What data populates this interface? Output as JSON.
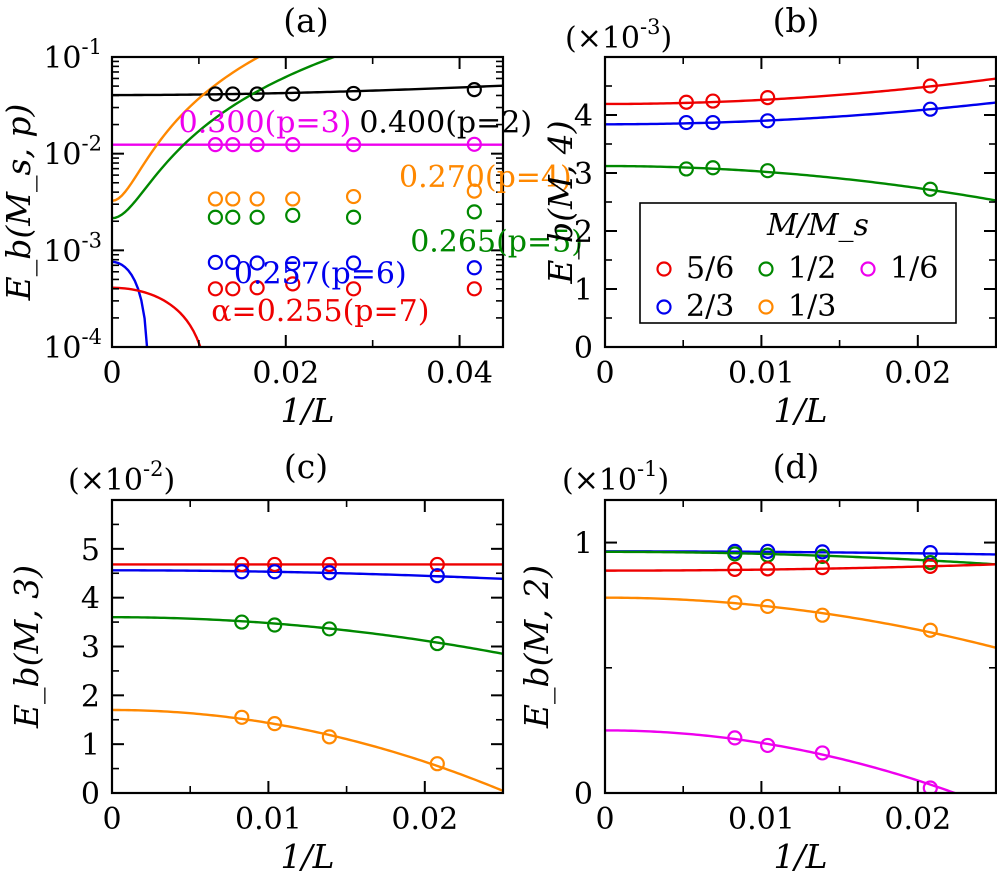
{
  "chart_data": [
    {
      "type": "line",
      "panel": "(a)",
      "yscale": "log",
      "xlabel": "1/L",
      "ylabel": "E_b(M_s, p)",
      "xlim": [
        0,
        0.045
      ],
      "ylim": [
        0.0001,
        0.1
      ],
      "xticks": [
        {
          "v": 0,
          "label": "0"
        },
        {
          "v": 0.02,
          "label": "0.02"
        },
        {
          "v": 0.04,
          "label": "0.04"
        }
      ],
      "yticks": [
        {
          "v": 0.1,
          "base": "10",
          "exp": "-1"
        },
        {
          "v": 0.01,
          "base": "10",
          "exp": "-2"
        },
        {
          "v": 0.001,
          "base": "10",
          "exp": "-3"
        },
        {
          "v": 0.0001,
          "base": "10",
          "exp": "-4"
        }
      ],
      "series": [
        {
          "name": "0.400(p=2)",
          "color": "#000000",
          "x": [
            0.0119,
            0.0139,
            0.0167,
            0.0208,
            0.0278,
            0.0417
          ],
          "y": [
            0.0415,
            0.0415,
            0.0415,
            0.0415,
            0.042,
            0.046
          ],
          "fit": [
            0.0404,
            0.0,
            5.0
          ],
          "label": {
            "text": "0.400(p=2)",
            "x": 0.0333,
            "y": 0.0205
          }
        },
        {
          "name": "0.300(p=3)",
          "color": "#ee00ee",
          "x": [
            0.0119,
            0.0139,
            0.0167,
            0.0208,
            0.0278,
            0.0417
          ],
          "y": [
            0.0124,
            0.0124,
            0.0124,
            0.0124,
            0.0124,
            0.0125
          ],
          "fit": [
            0.0124,
            0.0,
            0.0
          ],
          "label": {
            "text": "0.300(p=3)",
            "x": 0.0056,
            "y": 0.0205
          }
        },
        {
          "name": "0.270(p=4)",
          "color": "#ff8800",
          "x": [
            0.0119,
            0.0139,
            0.0167,
            0.0208,
            0.0278,
            0.0417
          ],
          "y": [
            0.0034,
            0.0034,
            0.0034,
            0.0034,
            0.0036,
            0.0041
          ],
          "fit": [
            0.00325,
            0.0,
            340.0
          ],
          "label": {
            "text": "0.270(p=4)",
            "x": 0.0305,
            "y": 0.0056
          }
        },
        {
          "name": "0.265(p=5)",
          "color": "#008800",
          "x": [
            0.0119,
            0.0139,
            0.0167,
            0.0208,
            0.0278,
            0.0417
          ],
          "y": [
            0.0022,
            0.0022,
            0.0022,
            0.0023,
            0.0022,
            0.0025
          ],
          "fit": [
            0.00215,
            0.0,
            150.0
          ],
          "label": {
            "text": "0.265(p=5)",
            "x": 0.0357,
            "y": 0.0012
          }
        },
        {
          "name": "0.257(p=6)",
          "color": "#0000ee",
          "x": [
            0.0119,
            0.0139,
            0.0167,
            0.0208,
            0.0278,
            0.0417
          ],
          "y": [
            0.00075,
            0.00075,
            0.00074,
            0.00073,
            0.00074,
            0.00066
          ],
          "fit": [
            0.00076,
            0.0,
            -40.0
          ],
          "label": {
            "text": "0.257(p=6)",
            "x": 0.0115,
            "y": 0.00056
          }
        },
        {
          "name": "α=0.255(p=7)",
          "color": "#ee0000",
          "x": [
            0.0119,
            0.0139,
            0.0167,
            0.0208,
            0.0278,
            0.0417
          ],
          "y": [
            0.0004,
            0.0004,
            0.00041,
            0.00045,
            0.0004,
            0.0004
          ],
          "fit": [
            0.00041,
            0.0,
            -3.0
          ],
          "label": {
            "text": "α=0.255(p=7)",
            "x": 0.0135,
            "y": 0.00023
          }
        }
      ]
    },
    {
      "type": "line",
      "panel": "(b)",
      "yscale": "linear",
      "multiplier": "(×10",
      "multiplier_exp": "-3",
      "xlabel": "1/L",
      "ylabel": "E_b(M, 4)",
      "xlim": [
        0,
        0.025
      ],
      "ylim": [
        0,
        5
      ],
      "xticks": [
        {
          "v": 0,
          "label": "0"
        },
        {
          "v": 0.01,
          "label": "0.01"
        },
        {
          "v": 0.02,
          "label": "0.02"
        }
      ],
      "yticks": [
        {
          "v": 0,
          "label": "0"
        },
        {
          "v": 1,
          "label": "1"
        },
        {
          "v": 2,
          "label": "2"
        },
        {
          "v": 3,
          "label": "3"
        },
        {
          "v": 4,
          "label": "4"
        }
      ],
      "legend": {
        "title": "M/M_s",
        "entries": [
          {
            "label": "5/6",
            "color": "#ee0000"
          },
          {
            "label": "1/2",
            "color": "#008800"
          },
          {
            "label": "1/6",
            "color": "#ee00ee"
          },
          {
            "label": "2/3",
            "color": "#0000ee"
          },
          {
            "label": "1/3",
            "color": "#ff8800"
          }
        ]
      },
      "series": [
        {
          "name": "5/6",
          "color": "#ee0000",
          "x": [
            0.0052,
            0.0069,
            0.0104,
            0.0208
          ],
          "y": [
            4.22,
            4.24,
            4.3,
            4.5
          ],
          "fit": [
            4.19,
            0.0,
            700.0
          ]
        },
        {
          "name": "2/3",
          "color": "#0000ee",
          "x": [
            0.0052,
            0.0069,
            0.0104,
            0.0208
          ],
          "y": [
            3.87,
            3.87,
            3.9,
            4.1
          ],
          "fit": [
            3.84,
            0.0,
            600.0
          ]
        },
        {
          "name": "1/2",
          "color": "#008800",
          "x": [
            0.0052,
            0.0069,
            0.0104,
            0.0208
          ],
          "y": [
            3.07,
            3.09,
            3.04,
            2.72
          ],
          "fit": [
            3.12,
            0.0,
            -950.0
          ]
        }
      ]
    },
    {
      "type": "line",
      "panel": "(c)",
      "yscale": "linear",
      "multiplier": "(×10",
      "multiplier_exp": "-2",
      "xlabel": "1/L",
      "ylabel": "E_b(M, 3)",
      "xlim": [
        0,
        0.025
      ],
      "ylim": [
        0,
        6
      ],
      "xticks": [
        {
          "v": 0,
          "label": "0"
        },
        {
          "v": 0.01,
          "label": "0.01"
        },
        {
          "v": 0.02,
          "label": "0.02"
        }
      ],
      "yticks": [
        {
          "v": 0,
          "label": "0"
        },
        {
          "v": 1,
          "label": "1"
        },
        {
          "v": 2,
          "label": "2"
        },
        {
          "v": 3,
          "label": "3"
        },
        {
          "v": 4,
          "label": "4"
        },
        {
          "v": 5,
          "label": "5"
        }
      ],
      "series": [
        {
          "name": "5/6",
          "color": "#ee0000",
          "x": [
            0.0083,
            0.0104,
            0.0139,
            0.0208
          ],
          "y": [
            4.68,
            4.68,
            4.68,
            4.68
          ],
          "fit": [
            4.68,
            0.0,
            0.0
          ]
        },
        {
          "name": "2/3",
          "color": "#0000ee",
          "x": [
            0.0083,
            0.0104,
            0.0139,
            0.0208
          ],
          "y": [
            4.53,
            4.53,
            4.51,
            4.45
          ],
          "fit": [
            4.56,
            0.0,
            -280.0
          ]
        },
        {
          "name": "1/2",
          "color": "#008800",
          "x": [
            0.0083,
            0.0104,
            0.0139,
            0.0208
          ],
          "y": [
            3.5,
            3.44,
            3.36,
            3.06
          ],
          "fit": [
            3.6,
            0.0,
            -1200.0
          ]
        },
        {
          "name": "1/3",
          "color": "#ff8800",
          "x": [
            0.0083,
            0.0104,
            0.0139,
            0.0208
          ],
          "y": [
            1.55,
            1.42,
            1.15,
            0.6
          ],
          "fit": [
            1.7,
            0.0,
            -2650.0
          ]
        }
      ]
    },
    {
      "type": "line",
      "panel": "(d)",
      "yscale": "linear",
      "multiplier": "(×10",
      "multiplier_exp": "-1",
      "xlabel": "1/L",
      "ylabel": "E_b(M, 2)",
      "xlim": [
        0,
        0.025
      ],
      "ylim": [
        0,
        1.17
      ],
      "xticks": [
        {
          "v": 0,
          "label": "0"
        },
        {
          "v": 0.01,
          "label": "0.01"
        },
        {
          "v": 0.02,
          "label": "0.02"
        }
      ],
      "yticks": [
        {
          "v": 0,
          "label": "0"
        },
        {
          "v": 1,
          "label": "1"
        }
      ],
      "series": [
        {
          "name": "2/3",
          "color": "#0000ee",
          "x": [
            0.0083,
            0.0104,
            0.0139,
            0.0208
          ],
          "y": [
            0.965,
            0.965,
            0.963,
            0.96
          ],
          "fit": [
            0.965,
            0.0,
            -20.0
          ]
        },
        {
          "name": "1/2",
          "color": "#008800",
          "x": [
            0.0083,
            0.0104,
            0.0139,
            0.0208
          ],
          "y": [
            0.955,
            0.95,
            0.945,
            0.92
          ],
          "fit": [
            0.963,
            0.0,
            -80.0
          ]
        },
        {
          "name": "5/6",
          "color": "#ee0000",
          "x": [
            0.0083,
            0.0104,
            0.0139,
            0.0208
          ],
          "y": [
            0.893,
            0.895,
            0.9,
            0.905
          ],
          "fit": [
            0.888,
            0.0,
            40.0
          ]
        },
        {
          "name": "1/3",
          "color": "#ff8800",
          "x": [
            0.0083,
            0.0104,
            0.0139,
            0.0208
          ],
          "y": [
            0.76,
            0.745,
            0.71,
            0.65
          ],
          "fit": [
            0.78,
            0.0,
            -320.0
          ]
        },
        {
          "name": "1/6",
          "color": "#ee00ee",
          "x": [
            0.0083,
            0.0104,
            0.0139,
            0.0208
          ],
          "y": [
            0.22,
            0.19,
            0.16,
            0.02
          ],
          "fit": [
            0.25,
            0.0,
            -500.0
          ]
        }
      ]
    }
  ]
}
